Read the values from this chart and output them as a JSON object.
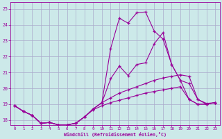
{
  "xlabel": "Windchill (Refroidissement éolien,°C)",
  "bg_color": "#cce9e9",
  "line_color": "#990099",
  "grid_color": "#aaaacc",
  "xlim": [
    -0.5,
    23.5
  ],
  "ylim": [
    17.7,
    25.4
  ],
  "yticks": [
    18,
    19,
    20,
    21,
    22,
    23,
    24,
    25
  ],
  "xticks": [
    0,
    1,
    2,
    3,
    4,
    5,
    6,
    7,
    8,
    9,
    10,
    11,
    12,
    13,
    14,
    15,
    16,
    17,
    18,
    19,
    20,
    21,
    22,
    23
  ],
  "series_top_x": [
    0,
    1,
    2,
    3,
    4,
    5,
    6,
    7,
    8,
    9,
    10,
    11,
    12,
    13,
    14,
    15,
    16,
    17,
    18,
    19,
    20,
    21,
    22,
    23
  ],
  "series_top_y": [
    18.9,
    18.55,
    18.3,
    17.8,
    17.85,
    17.7,
    17.7,
    17.8,
    18.2,
    18.7,
    19.1,
    22.5,
    24.4,
    24.1,
    24.75,
    24.8,
    23.6,
    23.1,
    21.5,
    20.5,
    20.3,
    19.3,
    19.05,
    19.1
  ],
  "series_mid_top_x": [
    0,
    1,
    2,
    3,
    4,
    5,
    6,
    7,
    8,
    9,
    10,
    11,
    12,
    13,
    14,
    15,
    16,
    17,
    18,
    19,
    20,
    21,
    22,
    23
  ],
  "series_mid_top_y": [
    18.9,
    18.55,
    18.3,
    17.8,
    17.85,
    17.7,
    17.7,
    17.8,
    18.2,
    18.7,
    19.1,
    20.6,
    21.4,
    20.8,
    21.5,
    21.6,
    22.8,
    23.5,
    21.5,
    20.5,
    19.3,
    19.0,
    19.0,
    19.1
  ],
  "series_mid_bot_x": [
    0,
    1,
    2,
    3,
    4,
    5,
    6,
    7,
    8,
    9,
    10,
    11,
    12,
    13,
    14,
    15,
    16,
    17,
    18,
    19,
    20,
    21,
    22,
    23
  ],
  "series_mid_bot_y": [
    18.9,
    18.55,
    18.3,
    17.8,
    17.85,
    17.7,
    17.7,
    17.8,
    18.2,
    18.7,
    19.1,
    19.4,
    19.7,
    19.9,
    20.1,
    20.3,
    20.5,
    20.65,
    20.75,
    20.85,
    20.75,
    19.3,
    19.0,
    19.1
  ],
  "series_bot_x": [
    0,
    1,
    2,
    3,
    4,
    5,
    6,
    7,
    8,
    9,
    10,
    11,
    12,
    13,
    14,
    15,
    16,
    17,
    18,
    19,
    20,
    21,
    22,
    23
  ],
  "series_bot_y": [
    18.9,
    18.55,
    18.3,
    17.8,
    17.85,
    17.7,
    17.7,
    17.8,
    18.2,
    18.65,
    18.9,
    19.1,
    19.25,
    19.4,
    19.55,
    19.7,
    19.8,
    19.9,
    20.0,
    20.1,
    19.3,
    19.0,
    19.0,
    19.1
  ]
}
